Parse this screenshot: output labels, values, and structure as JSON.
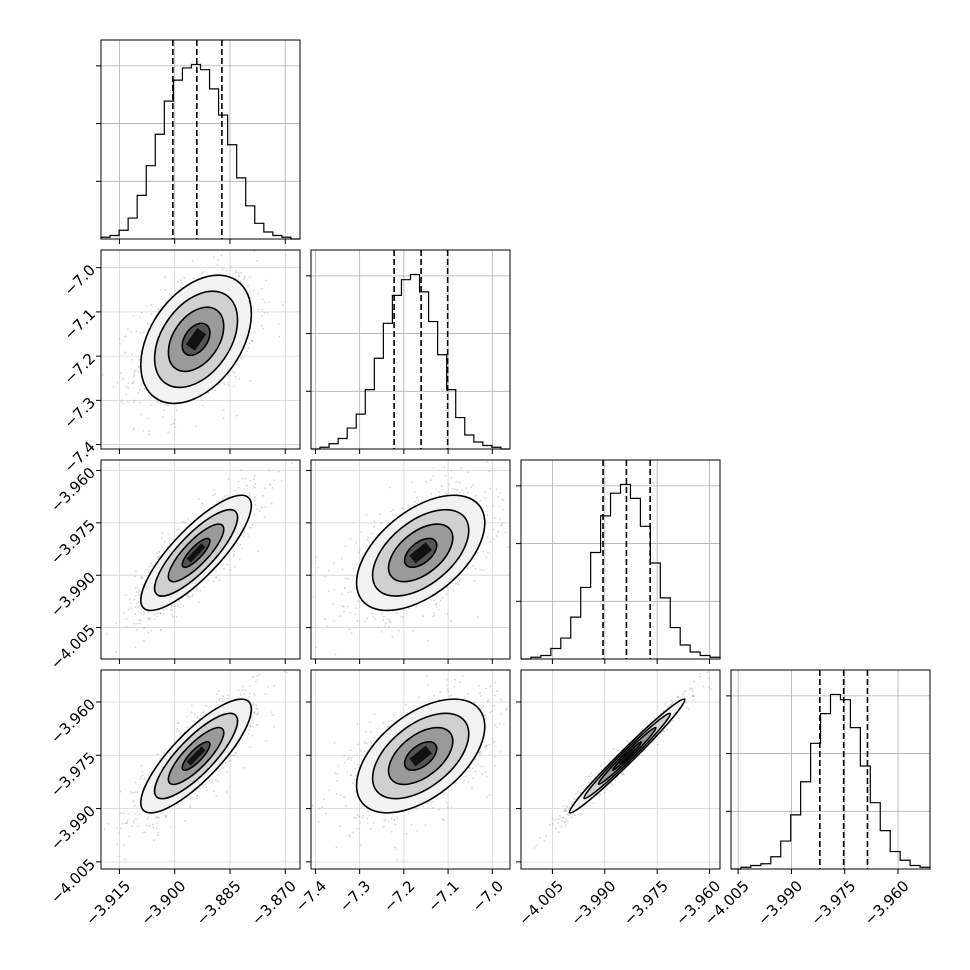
{
  "chart_data": {
    "type": "corner",
    "xlabel": "",
    "ylabel": "",
    "grid": true,
    "parameters": [
      {
        "index": 0,
        "range": [
          -3.92,
          -3.866
        ],
        "ticks": [
          -3.915,
          -3.9,
          -3.885,
          -3.87
        ],
        "tick_labels": [
          "−3.915",
          "−3.900",
          "−3.885",
          "−3.870"
        ],
        "quantiles": [
          -3.9005,
          -3.894,
          -3.8872
        ],
        "center": -3.8942,
        "sigma": 0.006
      },
      {
        "index": 1,
        "range": [
          -7.41,
          -6.96
        ],
        "ticks": [
          -7.4,
          -7.3,
          -7.2,
          -7.1,
          -7.0
        ],
        "tick_labels": [
          "−7.4",
          "−7.3",
          "−7.2",
          "−7.1",
          "−7.0"
        ],
        "quantiles": [
          -7.222,
          -7.161,
          -7.101
        ],
        "center": -7.162,
        "sigma": 0.058
      },
      {
        "index": 2,
        "range": [
          -4.014,
          -3.957
        ],
        "ticks": [
          -4.005,
          -3.99,
          -3.975,
          -3.96
        ],
        "tick_labels": [
          "−4.005",
          "−3.990",
          "−3.975",
          "−3.960"
        ],
        "quantiles": [
          -3.9905,
          -3.9838,
          -3.977
        ],
        "center": -3.9836,
        "sigma": 0.0066
      },
      {
        "index": 3,
        "range": [
          -4.007,
          -3.951
        ],
        "ticks": [
          -4.005,
          -3.99,
          -3.975,
          -3.96
        ],
        "tick_labels": [
          "−4.005",
          "−3.990",
          "−3.975",
          "−3.960"
        ],
        "quantiles": [
          -3.982,
          -3.9753,
          -3.9686
        ],
        "center": -3.9752,
        "sigma": 0.0064
      }
    ],
    "histograms": [
      {
        "param": 0,
        "ylim": [
          0,
          1.0
        ],
        "heights": [
          0.01,
          0.02,
          0.05,
          0.12,
          0.25,
          0.42,
          0.6,
          0.79,
          0.91,
          0.98,
          1.0,
          0.97,
          0.86,
          0.71,
          0.54,
          0.35,
          0.19,
          0.09,
          0.04,
          0.02,
          0.01,
          0.0
        ]
      },
      {
        "param": 1,
        "ylim": [
          0,
          1.0
        ],
        "heights": [
          0.0,
          0.01,
          0.03,
          0.06,
          0.12,
          0.2,
          0.34,
          0.52,
          0.72,
          0.88,
          0.97,
          1.0,
          0.9,
          0.73,
          0.54,
          0.34,
          0.18,
          0.08,
          0.04,
          0.02,
          0.01,
          0.0
        ]
      },
      {
        "param": 2,
        "ylim": [
          0,
          1.0
        ],
        "heights": [
          0.0,
          0.01,
          0.02,
          0.06,
          0.12,
          0.24,
          0.41,
          0.61,
          0.82,
          0.95,
          1.0,
          0.92,
          0.76,
          0.55,
          0.35,
          0.18,
          0.08,
          0.04,
          0.02,
          0.01
        ]
      },
      {
        "param": 3,
        "ylim": [
          0,
          1.0
        ],
        "heights": [
          0.0,
          0.01,
          0.02,
          0.03,
          0.07,
          0.16,
          0.31,
          0.5,
          0.72,
          0.89,
          1.0,
          0.97,
          0.81,
          0.59,
          0.38,
          0.22,
          0.1,
          0.05,
          0.02,
          0.01
        ]
      }
    ],
    "correlations": [
      {
        "x": 0,
        "y": 1,
        "rho": 0.4
      },
      {
        "x": 0,
        "y": 2,
        "rho": 0.82
      },
      {
        "x": 1,
        "y": 2,
        "rho": 0.52
      },
      {
        "x": 0,
        "y": 3,
        "rho": 0.82
      },
      {
        "x": 1,
        "y": 3,
        "rho": 0.52
      },
      {
        "x": 2,
        "y": 3,
        "rho": 0.985
      }
    ],
    "contour_levels_sigma": [
      0.5,
      1.0,
      1.5,
      2.0
    ]
  }
}
